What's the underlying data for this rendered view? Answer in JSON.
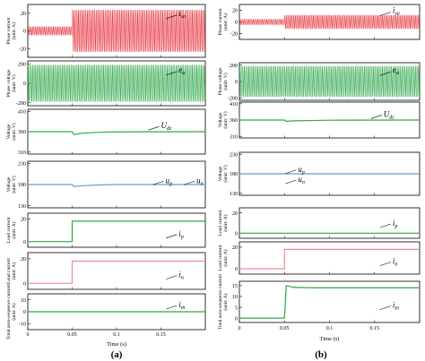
{
  "colors": {
    "red": "#e8323c",
    "green": "#2ea84a",
    "blue": "#5aa0d8",
    "pink": "#f08a93",
    "darkgreen": "#1f9a3a"
  },
  "chart_data": [
    {
      "id": "a",
      "caption": "(a)",
      "xlabel": "Time (s)",
      "xticks": [
        "0",
        "0.05",
        "0.1",
        "0.15"
      ],
      "xrange": [
        0,
        0.2
      ],
      "panels": [
        {
          "key": "isa",
          "ylabel": "Phase current (unit: A)",
          "yticks": [
            "20",
            "0",
            "-20"
          ],
          "ylim": [
            -30,
            30
          ],
          "type": "osc",
          "color": "red",
          "pre_amp": 5,
          "post_amp": 24,
          "post_offset": 0,
          "step_t": 0.05,
          "label": "i",
          "sub": "sa",
          "label_t": 0.17,
          "label_v": 20
        },
        {
          "key": "ea",
          "ylabel": "Phase voltage (unit: V)",
          "yticks": [
            "200",
            "0",
            "-200"
          ],
          "ylim": [
            -230,
            230
          ],
          "type": "osc",
          "color": "green",
          "pre_amp": 190,
          "post_amp": 190,
          "post_offset": 0,
          "step_t": 0.05,
          "label": "e",
          "sub": "a",
          "label_t": 0.17,
          "label_v": 140
        },
        {
          "key": "udc",
          "ylabel": "Voltage (unit: V)",
          "yticks": [
            "410",
            "360",
            "310"
          ],
          "ylim": [
            305,
            415
          ],
          "type": "line",
          "series": [
            {
              "color": "green",
              "pts": [
                [
                  0,
                  360
                ],
                [
                  0.05,
                  360
                ],
                [
                  0.052,
                  353
                ],
                [
                  0.06,
                  356
                ],
                [
                  0.08,
                  358.5
                ],
                [
                  0.1,
                  359.5
                ],
                [
                  0.2,
                  360
                ]
              ]
            }
          ],
          "labels": [
            {
              "t": 0.15,
              "v": 375,
              "txt": "U",
              "sub": "dc"
            }
          ]
        },
        {
          "key": "upun",
          "ylabel": "Voltage (unit: V)",
          "yticks": [
            "230",
            "180",
            "130"
          ],
          "ylim": [
            125,
            235
          ],
          "type": "line",
          "series": [
            {
              "color": "blue",
              "pts": [
                [
                  0,
                  180
                ],
                [
                  0.05,
                  180
                ],
                [
                  0.052,
                  175
                ],
                [
                  0.06,
                  177
                ],
                [
                  0.08,
                  179
                ],
                [
                  0.1,
                  180
                ],
                [
                  0.2,
                  180
                ]
              ]
            }
          ],
          "labels": [
            {
              "t": 0.155,
              "v": 190,
              "txt": "u",
              "sub": "p"
            },
            {
              "t": 0.19,
              "v": 190,
              "txt": "u",
              "sub": "n"
            }
          ]
        },
        {
          "key": "ip",
          "ylabel": "Load current (unit: A)",
          "yticks": [
            "20",
            "0"
          ],
          "ylim": [
            -5,
            25
          ],
          "type": "line",
          "series": [
            {
              "color": "green",
              "pts": [
                [
                  0,
                  0
                ],
                [
                  0.05,
                  0
                ],
                [
                  0.05,
                  18
                ],
                [
                  0.2,
                  18
                ]
              ]
            }
          ],
          "labels": [
            {
              "t": 0.17,
              "v": 7,
              "txt": "i",
              "sub": "p"
            }
          ]
        },
        {
          "key": "in",
          "ylabel": "Load current (unit: A)",
          "yticks": [
            "20",
            "0"
          ],
          "ylim": [
            -5,
            25
          ],
          "type": "line",
          "series": [
            {
              "color": "pink",
              "pts": [
                [
                  0,
                  0
                ],
                [
                  0.05,
                  0
                ],
                [
                  0.05,
                  18
                ],
                [
                  0.2,
                  18
                ]
              ]
            }
          ],
          "labels": [
            {
              "t": 0.17,
              "v": 7,
              "txt": "i",
              "sub": "n"
            }
          ]
        },
        {
          "key": "itn",
          "ylabel": "Total zero-sequence current (unit: A)",
          "yticks": [
            "10",
            "0",
            "-10"
          ],
          "ylim": [
            -15,
            15
          ],
          "type": "line",
          "series": [
            {
              "color": "green",
              "pts": [
                [
                  0,
                  0
                ],
                [
                  0.2,
                  0
                ]
              ]
            }
          ],
          "labels": [
            {
              "t": 0.17,
              "v": 6,
              "txt": "i",
              "sub": "tn"
            }
          ]
        }
      ]
    },
    {
      "id": "b",
      "caption": "(b)",
      "xlabel": "Time (s)",
      "xticks": [
        "0",
        "0.05",
        "0.1",
        "0.15"
      ],
      "xrange": [
        0,
        0.2
      ],
      "panels": [
        {
          "key": "isa",
          "ylabel": "Phase current (unit: A)",
          "yticks": [
            "20",
            "0",
            "-20"
          ],
          "ylim": [
            -30,
            30
          ],
          "type": "osc",
          "color": "red",
          "pre_amp": 5,
          "post_amp": 12,
          "post_offset": 0,
          "step_t": 0.05,
          "label": "i",
          "sub": "sa",
          "label_t": 0.17,
          "label_v": 20
        },
        {
          "key": "ea",
          "ylabel": "Phase voltage (unit: V)",
          "yticks": [
            "200",
            "0",
            "-200"
          ],
          "ylim": [
            -230,
            230
          ],
          "type": "osc",
          "color": "green",
          "pre_amp": 190,
          "post_amp": 190,
          "post_offset": 0,
          "step_t": 0.05,
          "label": "e",
          "sub": "a",
          "label_t": 0.17,
          "label_v": 140
        },
        {
          "key": "udc",
          "ylabel": "Voltage (unit: V)",
          "yticks": [
            "410",
            "360",
            "310"
          ],
          "ylim": [
            305,
            415
          ],
          "type": "line",
          "series": [
            {
              "color": "green",
              "pts": [
                [
                  0,
                  360
                ],
                [
                  0.05,
                  360
                ],
                [
                  0.052,
                  356
                ],
                [
                  0.06,
                  357.5
                ],
                [
                  0.08,
                  358.5
                ],
                [
                  0.1,
                  359.5
                ],
                [
                  0.2,
                  360
                ]
              ]
            }
          ],
          "labels": [
            {
              "t": 0.16,
              "v": 378,
              "txt": "U",
              "sub": "dc"
            }
          ]
        },
        {
          "key": "upun",
          "ylabel": "Voltage (unit: V)",
          "yticks": [
            "230",
            "180",
            "130"
          ],
          "ylim": [
            125,
            235
          ],
          "type": "line",
          "series": [
            {
              "color": "blue",
              "pts": [
                [
                  0,
                  180
                ],
                [
                  0.2,
                  180
                ]
              ]
            }
          ],
          "labels": [
            {
              "t": 0.065,
              "v": 192,
              "txt": "u",
              "sub": "p"
            },
            {
              "t": 0.065,
              "v": 166,
              "txt": "u",
              "sub": "n"
            }
          ]
        },
        {
          "key": "ip",
          "ylabel": "Load current (unit: A)",
          "yticks": [
            "20",
            "0"
          ],
          "ylim": [
            -5,
            25
          ],
          "type": "line",
          "series": [
            {
              "color": "green",
              "pts": [
                [
                  0,
                  0
                ],
                [
                  0.2,
                  0
                ]
              ]
            }
          ],
          "labels": [
            {
              "t": 0.17,
              "v": 10,
              "txt": "i",
              "sub": "p"
            }
          ]
        },
        {
          "key": "in",
          "ylabel": "Load current (unit: A)",
          "yticks": [
            "20",
            "0"
          ],
          "ylim": [
            -5,
            25
          ],
          "type": "line",
          "series": [
            {
              "color": "pink",
              "pts": [
                [
                  0,
                  0
                ],
                [
                  0.05,
                  0
                ],
                [
                  0.05,
                  18
                ],
                [
                  0.2,
                  18
                ]
              ]
            }
          ],
          "labels": [
            {
              "t": 0.17,
              "v": 7,
              "txt": "i",
              "sub": "n"
            }
          ]
        },
        {
          "key": "itn",
          "ylabel": "Total zero-sequence current (unit: A)",
          "yticks": [
            "15",
            "10",
            "5",
            "0"
          ],
          "ylim": [
            -2,
            17
          ],
          "type": "line",
          "series": [
            {
              "color": "green",
              "pts": [
                [
                  0,
                  0
                ],
                [
                  0.05,
                  0
                ],
                [
                  0.052,
                  15
                ],
                [
                  0.06,
                  14.2
                ],
                [
                  0.08,
                  14
                ],
                [
                  0.2,
                  14
                ]
              ]
            }
          ],
          "labels": [
            {
              "t": 0.17,
              "v": 6,
              "txt": "i",
              "sub": "tn"
            }
          ]
        }
      ]
    }
  ]
}
